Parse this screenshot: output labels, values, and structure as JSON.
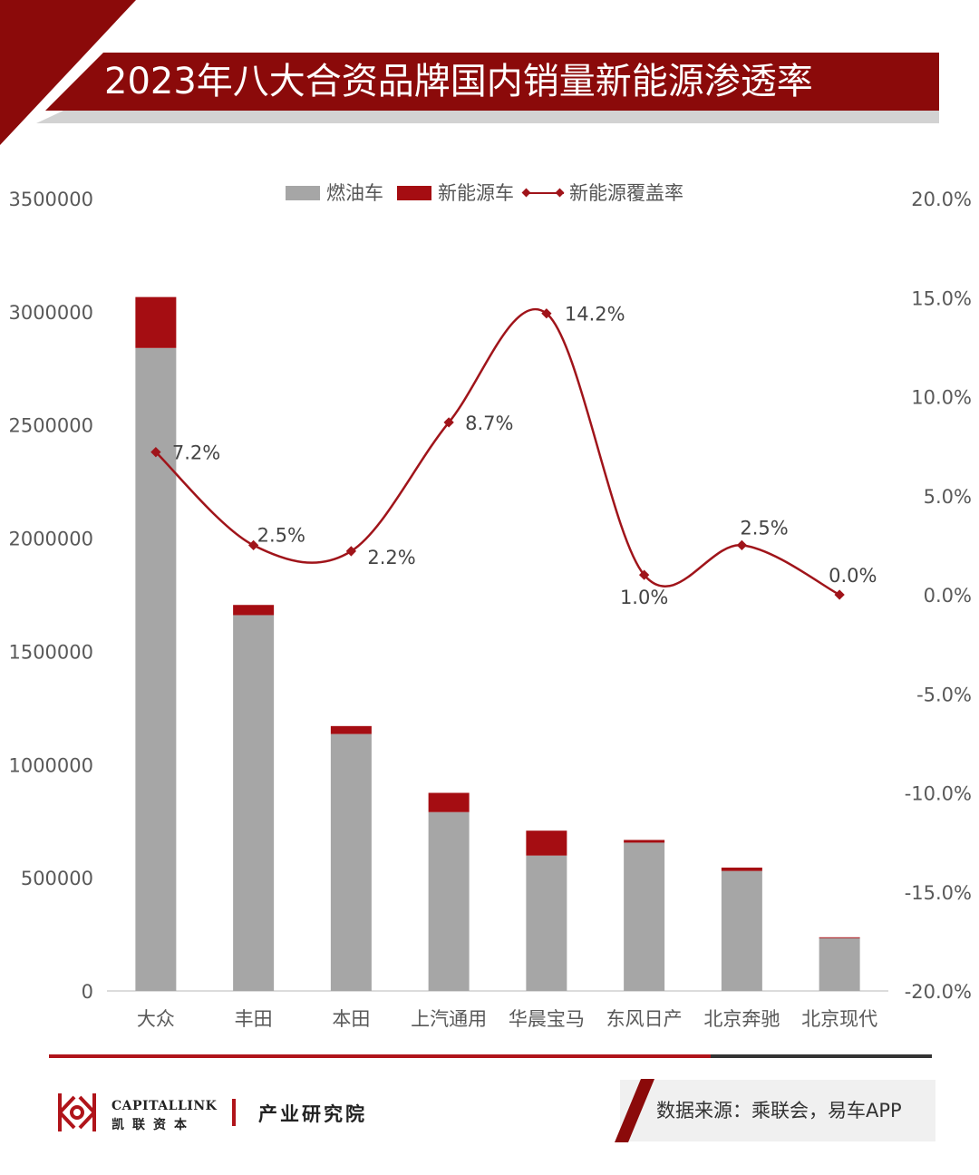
{
  "title": "2023年八大合资品牌国内销量新能源渗透率",
  "legend": {
    "fuel": "燃油车",
    "nev": "新能源车",
    "rate": "新能源覆盖率"
  },
  "colors": {
    "brand": "#8b0a0a",
    "fuel": "#a6a6a6",
    "nev": "#a50d12",
    "line": "#a0141a"
  },
  "footer": {
    "logo_en": "CAPITALLINK",
    "logo_cn": "凯联资本",
    "institute": "产业研究院",
    "source": "数据来源：乘联会，易车APP"
  },
  "chart_data": {
    "type": "bar",
    "stacked": true,
    "categories": [
      "大众",
      "丰田",
      "本田",
      "上汽通用",
      "华晨宝马",
      "东风日产",
      "北京奔驰",
      "北京现代"
    ],
    "series": [
      {
        "name": "燃油车",
        "axis": "left",
        "values": [
          2840000,
          1660000,
          1135000,
          790000,
          598000,
          655000,
          530000,
          233000
        ]
      },
      {
        "name": "新能源车",
        "axis": "left",
        "values": [
          225000,
          45000,
          35000,
          85000,
          110000,
          12000,
          15000,
          4000
        ]
      },
      {
        "name": "新能源覆盖率",
        "axis": "right",
        "type": "line",
        "values": [
          7.2,
          2.5,
          2.2,
          8.7,
          14.2,
          1.0,
          2.5,
          0.0
        ]
      }
    ],
    "rate_labels": [
      "7.2%",
      "2.5%",
      "2.2%",
      "8.7%",
      "14.2%",
      "1.0%",
      "2.5%",
      "0.0%"
    ],
    "y_left": {
      "min": 0,
      "max": 3500000,
      "ticks": [
        "0",
        "500000",
        "1000000",
        "1500000",
        "2000000",
        "2500000",
        "3000000",
        "3500000"
      ]
    },
    "y_right": {
      "min": -20,
      "max": 20,
      "ticks": [
        "-20.0%",
        "-15.0%",
        "-10.0%",
        "-5.0%",
        "0.0%",
        "5.0%",
        "10.0%",
        "15.0%",
        "20.0%"
      ]
    },
    "legend_position": "top",
    "grid": false
  }
}
